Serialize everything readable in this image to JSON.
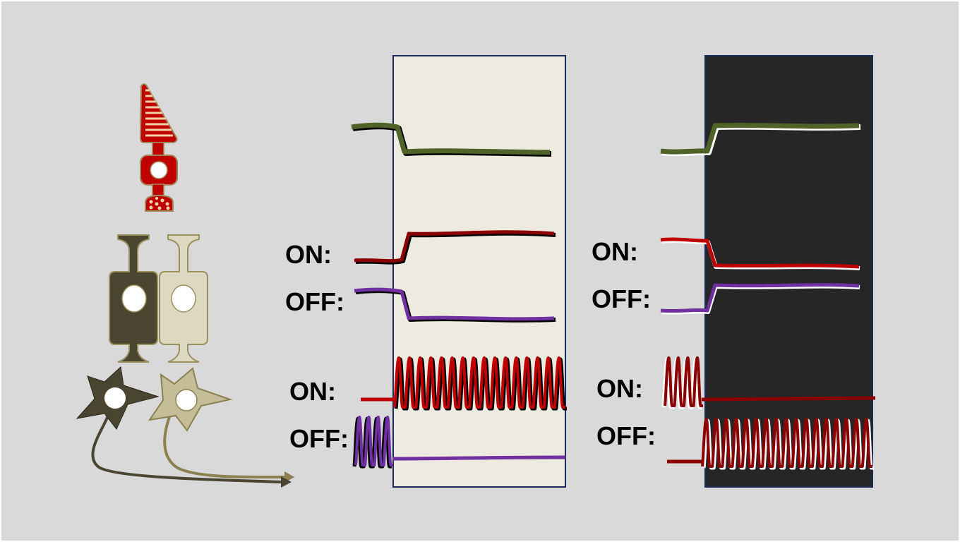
{
  "labels": {
    "light_on": "ON:",
    "light_off": "OFF:",
    "light_ganglion_on": "ON:",
    "light_ganglion_off": "OFF:",
    "dark_on": "ON:",
    "dark_off": "OFF:",
    "dark_ganglion_on": "ON:",
    "dark_ganglion_off": "OFF:"
  },
  "colors": {
    "background": "#d9d9d9",
    "light_panel": "#edebe0",
    "dark_panel": "#262626",
    "panel_border": "#1a2a5a",
    "photoreceptor": "#c00000",
    "photoreceptor_trace": "#4f6228",
    "on_trace": "#c00000",
    "on_trace_dark": "#8b0000",
    "off_trace": "#7030a0",
    "on_cell": "#4a4530",
    "off_cell": "#ddd8c0",
    "off_ganglion": "#c4bd97"
  },
  "icons": [
    "rod-photoreceptor-icon",
    "on-bipolar-cell-icon",
    "off-bipolar-cell-icon",
    "on-ganglion-cell-icon",
    "off-ganglion-cell-icon"
  ]
}
